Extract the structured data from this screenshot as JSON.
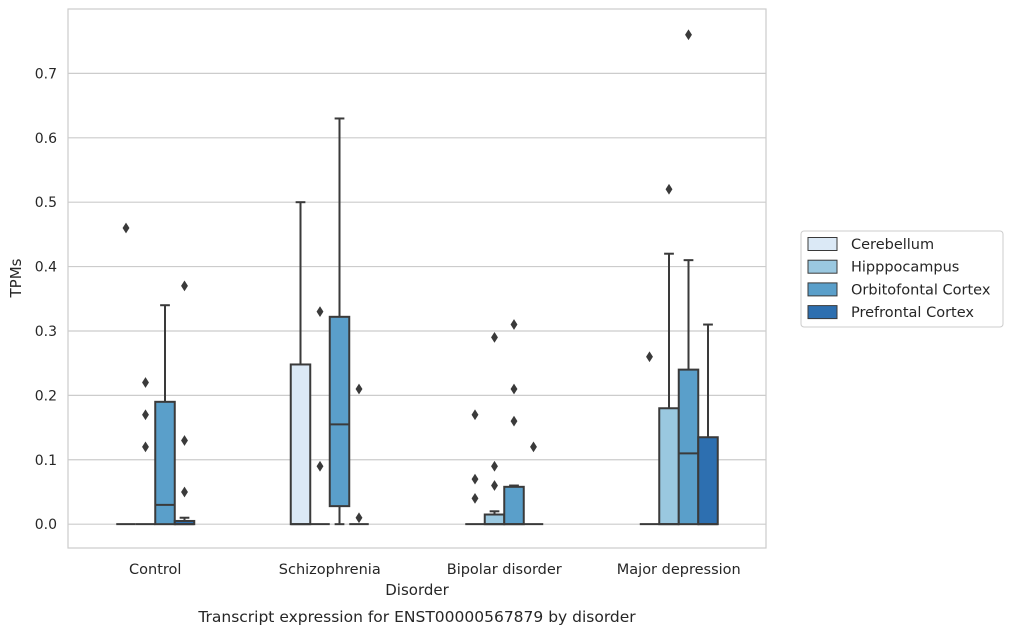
{
  "chart_data": {
    "type": "box",
    "xlabel": "Disorder",
    "ylabel": "TPMs",
    "caption": "Transcript expression for ENST00000567879 by disorder",
    "ylim": [
      -0.037,
      0.8
    ],
    "yticks": [
      0.0,
      0.1,
      0.2,
      0.3,
      0.4,
      0.5,
      0.6,
      0.7
    ],
    "ytick_labels": [
      "0.0",
      "0.1",
      "0.2",
      "0.3",
      "0.4",
      "0.5",
      "0.6",
      "0.7"
    ],
    "grid": "horizontal",
    "legend_position": "right",
    "categories": [
      "Control",
      "Schizophrenia",
      "Bipolar disorder",
      "Major depression"
    ],
    "series": [
      {
        "name": "Cerebellum",
        "color": "#dbe9f6",
        "boxes": [
          {
            "whislo": 0.0,
            "q1": 0.0,
            "med": 0.0,
            "q3": 0.0,
            "whishi": 0.0,
            "fliers": [
              0.46
            ]
          },
          {
            "whislo": 0.0,
            "q1": 0.0,
            "med": 0.0,
            "q3": 0.248,
            "whishi": 0.5,
            "fliers": []
          },
          {
            "whislo": 0.0,
            "q1": 0.0,
            "med": 0.0,
            "q3": 0.0,
            "whishi": 0.0,
            "fliers": [
              0.17,
              0.07,
              0.04
            ]
          },
          {
            "whislo": 0.0,
            "q1": 0.0,
            "med": 0.0,
            "q3": 0.0,
            "whishi": 0.0,
            "fliers": [
              0.26
            ]
          }
        ]
      },
      {
        "name": "Hipppocampus",
        "color": "#9ac8e0",
        "boxes": [
          {
            "whislo": 0.0,
            "q1": 0.0,
            "med": 0.0,
            "q3": 0.0,
            "whishi": 0.0,
            "fliers": [
              0.22,
              0.17,
              0.12
            ]
          },
          {
            "whislo": 0.0,
            "q1": 0.0,
            "med": 0.0,
            "q3": 0.0,
            "whishi": 0.0,
            "fliers": [
              0.33,
              0.09
            ]
          },
          {
            "whislo": 0.0,
            "q1": 0.0,
            "med": 0.0,
            "q3": 0.015,
            "whishi": 0.02,
            "fliers": [
              0.29,
              0.09,
              0.06
            ]
          },
          {
            "whislo": 0.0,
            "q1": 0.0,
            "med": 0.0,
            "q3": 0.18,
            "whishi": 0.42,
            "fliers": [
              0.52
            ]
          }
        ]
      },
      {
        "name": "Orbitofontal Cortex",
        "color": "#5a9fca",
        "boxes": [
          {
            "whislo": 0.0,
            "q1": 0.0,
            "med": 0.03,
            "q3": 0.19,
            "whishi": 0.34,
            "fliers": []
          },
          {
            "whislo": 0.0,
            "q1": 0.028,
            "med": 0.155,
            "q3": 0.322,
            "whishi": 0.63,
            "fliers": []
          },
          {
            "whislo": 0.0,
            "q1": 0.0,
            "med": 0.0,
            "q3": 0.058,
            "whishi": 0.06,
            "fliers": [
              0.31,
              0.21,
              0.16
            ]
          },
          {
            "whislo": 0.0,
            "q1": 0.0,
            "med": 0.11,
            "q3": 0.24,
            "whishi": 0.41,
            "fliers": [
              0.76
            ]
          }
        ]
      },
      {
        "name": "Prefrontal Cortex",
        "color": "#2d6fb0",
        "boxes": [
          {
            "whislo": 0.0,
            "q1": 0.0,
            "med": 0.0,
            "q3": 0.005,
            "whishi": 0.01,
            "fliers": [
              0.37,
              0.13,
              0.05
            ]
          },
          {
            "whislo": 0.0,
            "q1": 0.0,
            "med": 0.0,
            "q3": 0.0,
            "whishi": 0.0,
            "fliers": [
              0.21,
              0.01
            ]
          },
          {
            "whislo": 0.0,
            "q1": 0.0,
            "med": 0.0,
            "q3": 0.0,
            "whishi": 0.0,
            "fliers": [
              0.12
            ]
          },
          {
            "whislo": 0.0,
            "q1": 0.0,
            "med": 0.0,
            "q3": 0.135,
            "whishi": 0.31,
            "fliers": []
          }
        ]
      }
    ]
  }
}
